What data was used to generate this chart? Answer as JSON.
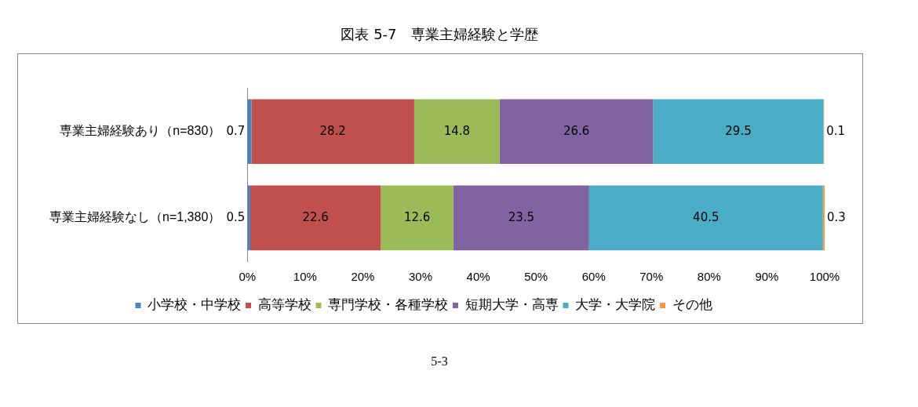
{
  "chart_data": {
    "type": "bar",
    "orientation": "horizontal",
    "stacked": true,
    "title": "図表 5-7　専業主婦経験と学歴",
    "categories": [
      "専業主婦経験あり（n=830）",
      "専業主婦経験なし（n=1,380）"
    ],
    "series": [
      {
        "name": "小学校・中学校",
        "color": "#4f81bd",
        "values": [
          0.7,
          0.5
        ]
      },
      {
        "name": "高等学校",
        "color": "#c0504d",
        "values": [
          28.2,
          22.6
        ]
      },
      {
        "name": "専門学校・各種学校",
        "color": "#9bbb59",
        "values": [
          14.8,
          12.6
        ]
      },
      {
        "name": "短期大学・高専",
        "color": "#8064a2",
        "values": [
          26.6,
          23.5
        ]
      },
      {
        "name": "大学・大学院",
        "color": "#4bacc6",
        "values": [
          29.5,
          40.5
        ]
      },
      {
        "name": "その他",
        "color": "#f79646",
        "values": [
          0.1,
          0.3
        ]
      }
    ],
    "xlim": [
      0,
      100
    ],
    "xticks": [
      {
        "value": 0,
        "label": "0%"
      },
      {
        "value": 10,
        "label": "10%"
      },
      {
        "value": 20,
        "label": "20%"
      },
      {
        "value": 30,
        "label": "30%"
      },
      {
        "value": 40,
        "label": "40%"
      },
      {
        "value": 50,
        "label": "50%"
      },
      {
        "value": 60,
        "label": "60%"
      },
      {
        "value": 70,
        "label": "70%"
      },
      {
        "value": 80,
        "label": "80%"
      },
      {
        "value": 90,
        "label": "90%"
      },
      {
        "value": 100,
        "label": "100%"
      }
    ],
    "data_labels": true,
    "grid": false,
    "legend": "bottom",
    "annotations": [
      "5-3"
    ]
  }
}
